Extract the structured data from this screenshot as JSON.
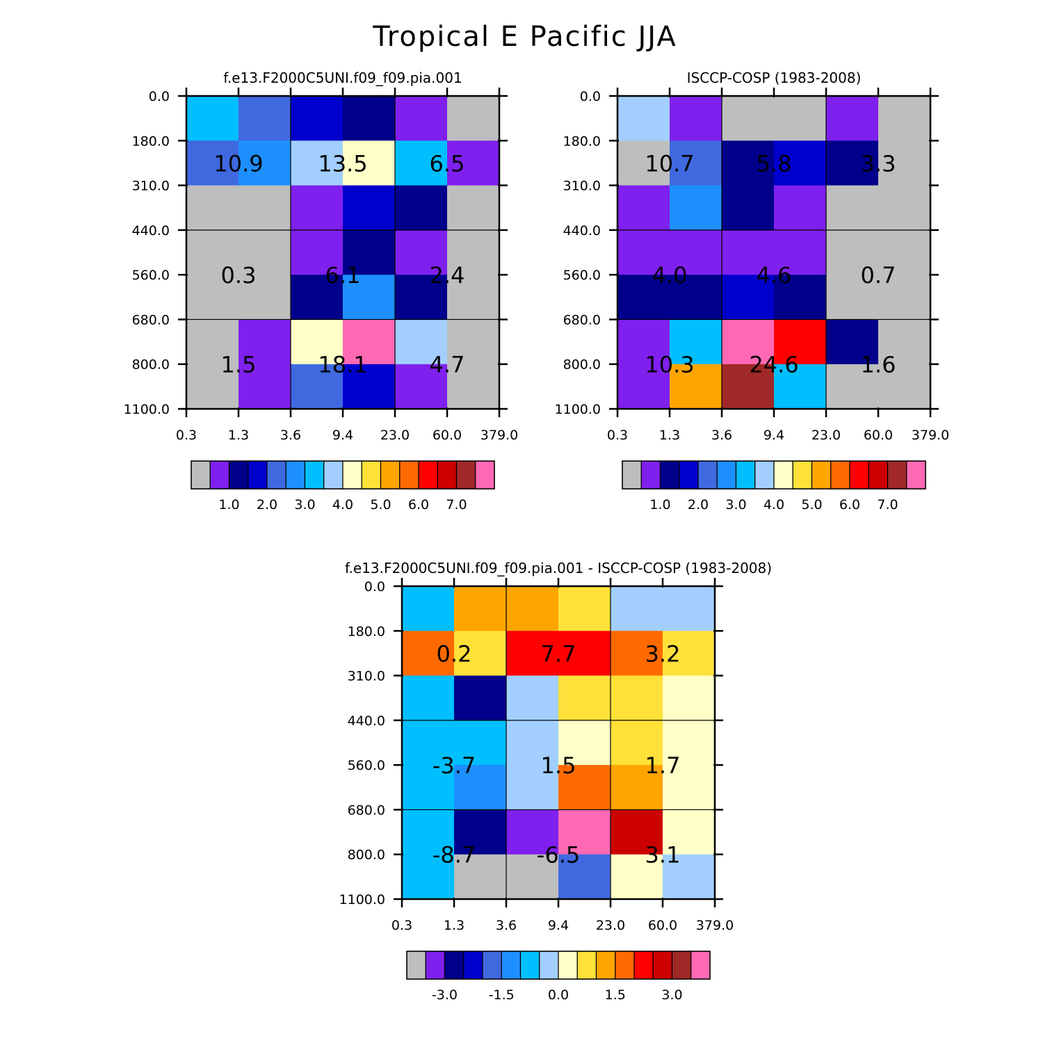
{
  "figure_title": "Tropical E Pacific JJA",
  "palette": [
    "#BEBEBE",
    "#7F20EE",
    "#00008A",
    "#0000CD",
    "#4069E0",
    "#1E8FFF",
    "#00BFFF",
    "#A2CFFF",
    "#FFFFC8",
    "#FFE13A",
    "#FFA500",
    "#FF6A00",
    "#FF0000",
    "#CC0000",
    "#A02828",
    "#FF69B4"
  ],
  "chart_data": [
    {
      "id": "model",
      "type": "heatmap",
      "title": "f.e13.F2000C5UNI.f09_f09.pia.001",
      "x_tick_labels": [
        "0.3",
        "1.3",
        "3.6",
        "9.4",
        "23.0",
        "60.0",
        "379.0"
      ],
      "y_tick_labels": [
        "0.0",
        "180.0",
        "310.0",
        "440.0",
        "560.0",
        "680.0",
        "800.0",
        "1100.0"
      ],
      "cell_color_index": [
        [
          6,
          4,
          3,
          2,
          1,
          0
        ],
        [
          4,
          5,
          7,
          8,
          6,
          1
        ],
        [
          0,
          0,
          1,
          3,
          2,
          0
        ],
        [
          0,
          0,
          1,
          2,
          1,
          0
        ],
        [
          0,
          0,
          2,
          5,
          2,
          0
        ],
        [
          0,
          1,
          8,
          15,
          7,
          0
        ],
        [
          0,
          1,
          4,
          3,
          1,
          0
        ]
      ],
      "block_values": [
        [
          "10.9",
          "13.5",
          "6.5"
        ],
        [
          "0.3",
          "6.1",
          "2.4"
        ],
        [
          "1.5",
          "18.1",
          "4.7"
        ]
      ],
      "colorbar_labels": [
        "1.0",
        "2.0",
        "3.0",
        "4.0",
        "5.0",
        "6.0",
        "7.0"
      ]
    },
    {
      "id": "obs",
      "type": "heatmap",
      "title": "ISCCP-COSP (1983-2008)",
      "x_tick_labels": [
        "0.3",
        "1.3",
        "3.6",
        "9.4",
        "23.0",
        "60.0",
        "379.0"
      ],
      "y_tick_labels": [
        "0.0",
        "180.0",
        "310.0",
        "440.0",
        "560.0",
        "680.0",
        "800.0",
        "1100.0"
      ],
      "cell_color_index": [
        [
          7,
          1,
          0,
          0,
          1,
          0
        ],
        [
          0,
          4,
          2,
          3,
          2,
          0
        ],
        [
          1,
          5,
          2,
          1,
          0,
          0
        ],
        [
          1,
          1,
          1,
          1,
          0,
          0
        ],
        [
          2,
          2,
          3,
          2,
          0,
          0
        ],
        [
          1,
          6,
          15,
          12,
          2,
          0
        ],
        [
          1,
          10,
          14,
          6,
          0,
          0
        ]
      ],
      "block_values": [
        [
          "10.7",
          "5.8",
          "3.3"
        ],
        [
          "4.0",
          "4.6",
          "0.7"
        ],
        [
          "10.3",
          "24.6",
          "1.6"
        ]
      ],
      "colorbar_labels": [
        "1.0",
        "2.0",
        "3.0",
        "4.0",
        "5.0",
        "6.0",
        "7.0"
      ]
    },
    {
      "id": "diff",
      "type": "heatmap",
      "title": "f.e13.F2000C5UNI.f09_f09.pia.001 - ISCCP-COSP (1983-2008)",
      "x_tick_labels": [
        "0.3",
        "1.3",
        "3.6",
        "9.4",
        "23.0",
        "60.0",
        "379.0"
      ],
      "y_tick_labels": [
        "0.0",
        "180.0",
        "310.0",
        "440.0",
        "560.0",
        "680.0",
        "800.0",
        "1100.0"
      ],
      "cell_color_index": [
        [
          6,
          10,
          10,
          9,
          7,
          7
        ],
        [
          11,
          9,
          12,
          12,
          11,
          9
        ],
        [
          6,
          2,
          7,
          9,
          9,
          8
        ],
        [
          6,
          6,
          7,
          8,
          9,
          8
        ],
        [
          6,
          5,
          7,
          11,
          10,
          8
        ],
        [
          6,
          2,
          1,
          15,
          13,
          8
        ],
        [
          6,
          0,
          0,
          4,
          8,
          7
        ]
      ],
      "block_values": [
        [
          "0.2",
          "7.7",
          "3.2"
        ],
        [
          "-3.7",
          "1.5",
          "1.7"
        ],
        [
          "-8.7",
          "-6.5",
          "3.1"
        ]
      ],
      "colorbar_labels": [
        "-3.0",
        "-1.5",
        "0.0",
        "1.5",
        "3.0"
      ]
    }
  ]
}
